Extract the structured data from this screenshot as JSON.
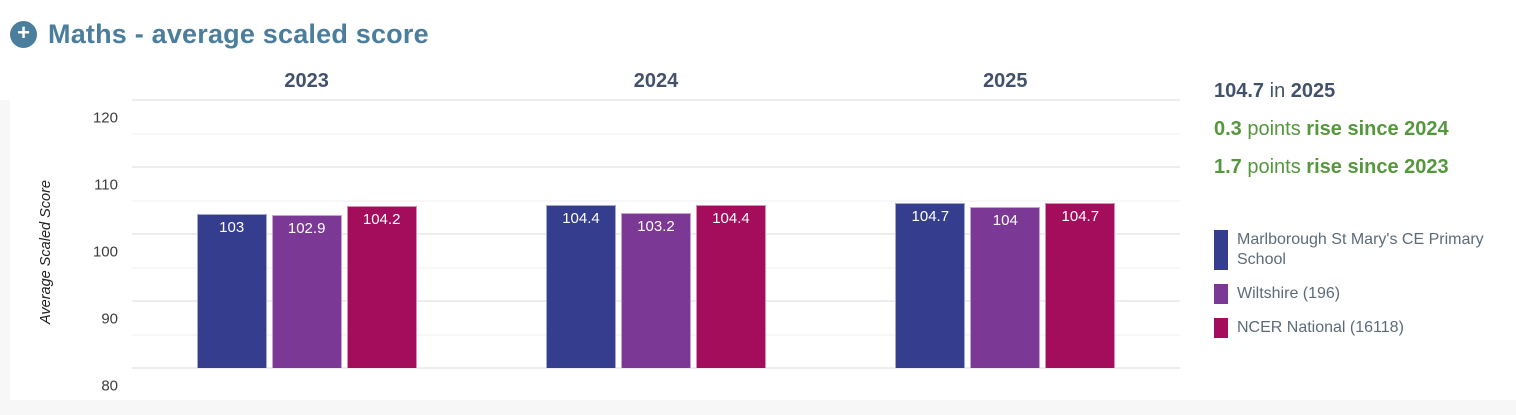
{
  "header": {
    "title": "Maths - average scaled score",
    "expand_icon": "plus-circle",
    "accent_color": "#4B7E9C"
  },
  "summary": {
    "lines": [
      {
        "color": "#42526B",
        "segments": [
          [
            "104.7",
            true
          ],
          [
            " in ",
            false
          ],
          [
            "2025",
            true
          ]
        ]
      },
      {
        "color": "#55973D",
        "segments": [
          [
            "0.3",
            true
          ],
          [
            " points ",
            false
          ],
          [
            "rise since 2024",
            true
          ]
        ]
      },
      {
        "color": "#55973D",
        "segments": [
          [
            "1.7",
            true
          ],
          [
            " points ",
            false
          ],
          [
            "rise since 2023",
            true
          ]
        ]
      }
    ]
  },
  "legend": [
    {
      "label": "Marlborough St Mary's CE Primary School",
      "color": "#353E8E"
    },
    {
      "label": "Wiltshire (196)",
      "color": "#7B3894"
    },
    {
      "label": "NCER National (16118)",
      "color": "#A30D5C"
    }
  ],
  "chart_data": {
    "type": "bar",
    "title": "Maths - average scaled score",
    "categories": [
      "2023",
      "2024",
      "2025"
    ],
    "series": [
      {
        "name": "Marlborough St Mary's CE Primary School",
        "color": "#353E8E",
        "values": [
          103,
          104.4,
          104.7
        ]
      },
      {
        "name": "Wiltshire (196)",
        "color": "#7B3894",
        "values": [
          102.9,
          103.2,
          104
        ]
      },
      {
        "name": "NCER National (16118)",
        "color": "#A30D5C",
        "values": [
          104.2,
          104.4,
          104.7
        ]
      }
    ],
    "xlabel": "",
    "ylabel": "Average Scaled Score",
    "ylim": [
      80,
      120
    ],
    "yticks": [
      80,
      90,
      100,
      110,
      120
    ],
    "minor_grid_step": 5,
    "grid": true,
    "bar_labels": true,
    "legend_position": "right"
  }
}
